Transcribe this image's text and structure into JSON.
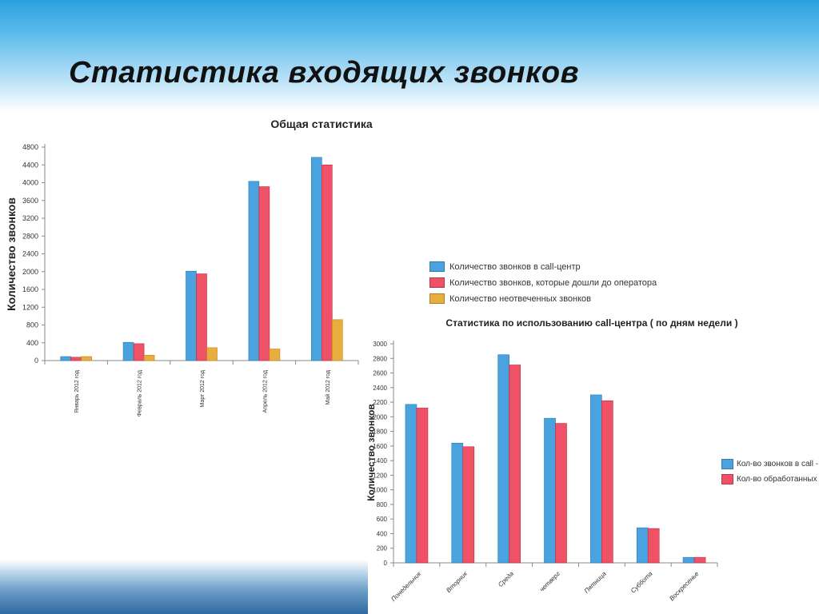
{
  "slide": {
    "title": "Статистика входящих звонков"
  },
  "colors": {
    "blue": "#4aa3de",
    "red": "#ef5166",
    "orange": "#e8ad3c"
  },
  "chart_data": [
    {
      "type": "bar",
      "title": "Общая статистика",
      "ylabel": "Количество звонков",
      "xlabel": "",
      "ylim": [
        0,
        4800
      ],
      "yticks": [
        0,
        400,
        800,
        1200,
        1600,
        2000,
        2400,
        2800,
        3200,
        3600,
        4000,
        4400,
        4800
      ],
      "categories": [
        "Январь 2012 год",
        "Февраль 2012 год",
        "Март 2012 год",
        "Апрель 2012 год",
        "Май 2012 год"
      ],
      "series": [
        {
          "name": "Количество звонков в call-центр",
          "color": "#4aa3de",
          "values": [
            90,
            410,
            2010,
            4030,
            4570
          ]
        },
        {
          "name": "Количество звонков, которые дошли до оператора",
          "color": "#ef5166",
          "values": [
            75,
            380,
            1950,
            3910,
            4400
          ]
        },
        {
          "name": "Количество неотвеченных звонков",
          "color": "#e8ad3c",
          "values": [
            90,
            120,
            290,
            260,
            920
          ]
        }
      ],
      "legend_position": "right",
      "grid": false
    },
    {
      "type": "bar",
      "title": "Статистика по использованию call-центра ( по дням недели )",
      "ylabel": "Количество звонков",
      "xlabel": "",
      "ylim": [
        0,
        3000
      ],
      "yticks": [
        0,
        200,
        400,
        600,
        800,
        1000,
        1200,
        1400,
        1600,
        1800,
        2000,
        2200,
        2400,
        2600,
        2800,
        3000
      ],
      "categories": [
        "Понедельник",
        "Вторник",
        "Среда",
        "четверг",
        "Пятница",
        "Суббота",
        "Воскресенье"
      ],
      "series": [
        {
          "name": "Кол-во звонков в call - центр",
          "color": "#4aa3de",
          "values": [
            2170,
            1640,
            2850,
            1980,
            2300,
            480,
            75
          ]
        },
        {
          "name": "Кол-во обработанных звонков",
          "color": "#ef5166",
          "values": [
            2120,
            1590,
            2710,
            1910,
            2220,
            470,
            75
          ]
        }
      ],
      "legend_position": "right",
      "grid": false
    }
  ]
}
